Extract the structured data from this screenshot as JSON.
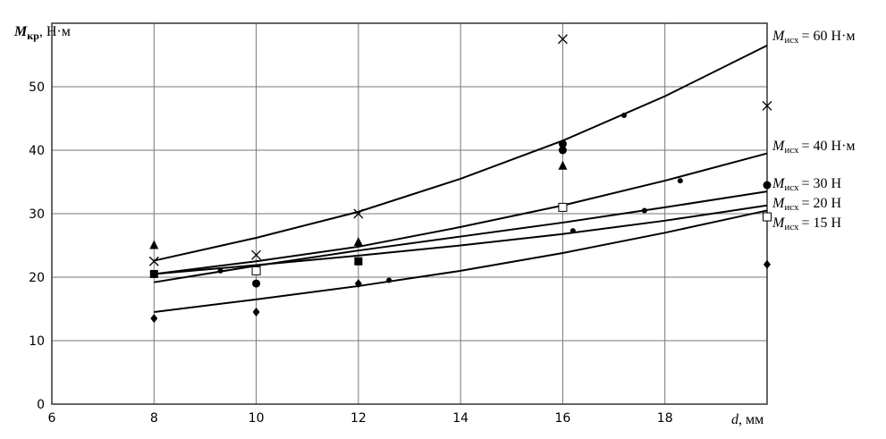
{
  "chart_data": {
    "type": "scatter",
    "y_label": {
      "sym": "M",
      "sub": "кр",
      "rest": ", Н·м"
    },
    "x_label": {
      "sym": "d",
      "rest": ", мм"
    },
    "xlim": [
      6,
      20
    ],
    "xticks": [
      6,
      8,
      10,
      12,
      14,
      16,
      18
    ],
    "ylim": [
      0,
      60
    ],
    "yticks": [
      0,
      10,
      20,
      30,
      40,
      50
    ],
    "grid": true,
    "curves": [
      {
        "label": {
          "sym": "M",
          "sub": "исх",
          "rest": "= 60 Н·м"
        },
        "color": "#000000",
        "x": [
          8,
          10,
          12,
          14,
          16,
          18,
          20
        ],
        "values": [
          22.6,
          26.2,
          30.3,
          35.5,
          41.5,
          48.5,
          56.5
        ]
      },
      {
        "label": {
          "sym": "M",
          "sub": "исх",
          "rest": "= 40 Н·м"
        },
        "color": "#000000",
        "x": [
          8,
          10,
          12,
          14,
          16,
          18,
          20
        ],
        "values": [
          20.5,
          22.5,
          24.8,
          27.9,
          31.3,
          35.2,
          39.5
        ]
      },
      {
        "label": {
          "sym": "M",
          "sub": "исх",
          "rest": "= 30 Н"
        },
        "color": "#000000",
        "x": [
          8,
          10,
          12,
          14,
          16,
          18,
          20
        ],
        "values": [
          19.2,
          21.8,
          24.2,
          26.4,
          28.6,
          31.0,
          33.5
        ]
      },
      {
        "label": {
          "sym": "M",
          "sub": "исх",
          "rest": "= 20 Н"
        },
        "color": "#000000",
        "x": [
          8,
          10,
          12,
          14,
          16,
          18,
          20
        ],
        "values": [
          20.5,
          21.9,
          23.4,
          25.0,
          26.8,
          28.9,
          31.3
        ]
      },
      {
        "label": {
          "sym": "M",
          "sub": "исх",
          "rest": "= 15 Н"
        },
        "color": "#000000",
        "x": [
          8,
          10,
          12,
          14,
          16,
          18,
          20
        ],
        "values": [
          14.5,
          16.5,
          18.6,
          21.0,
          23.8,
          27.0,
          30.5
        ]
      }
    ],
    "series": [
      {
        "marker": "cross",
        "color": "#000000",
        "x": [
          8,
          10,
          12,
          16,
          20
        ],
        "values": [
          22.5,
          23.5,
          30,
          57.5,
          47
        ]
      },
      {
        "marker": "triangle",
        "color": "#000000",
        "x": [
          8,
          10,
          12,
          16,
          20
        ],
        "values": [
          25,
          21,
          25.5,
          37.5,
          29.5
        ]
      },
      {
        "marker": "circle",
        "color": "#000000",
        "x": [
          10,
          16,
          20,
          16
        ],
        "values": [
          19,
          41,
          34.5,
          40
        ]
      },
      {
        "marker": "square",
        "color": "#000000",
        "x": [
          8,
          12
        ],
        "values": [
          20.5,
          22.5
        ]
      },
      {
        "marker": "open-square",
        "color": "#000000",
        "x": [
          10,
          16,
          20
        ],
        "values": [
          21,
          31,
          29.5
        ]
      },
      {
        "marker": "diamond",
        "color": "#000000",
        "x": [
          8,
          10,
          12,
          20
        ],
        "values": [
          13.5,
          14.5,
          19,
          22
        ]
      },
      {
        "marker": "dot",
        "color": "#000000",
        "x": [
          9.3,
          12.6,
          16.2,
          17.2,
          17.6,
          18.3
        ],
        "values": [
          21,
          19.5,
          27.3,
          45.5,
          30.5,
          35.2
        ]
      }
    ]
  }
}
